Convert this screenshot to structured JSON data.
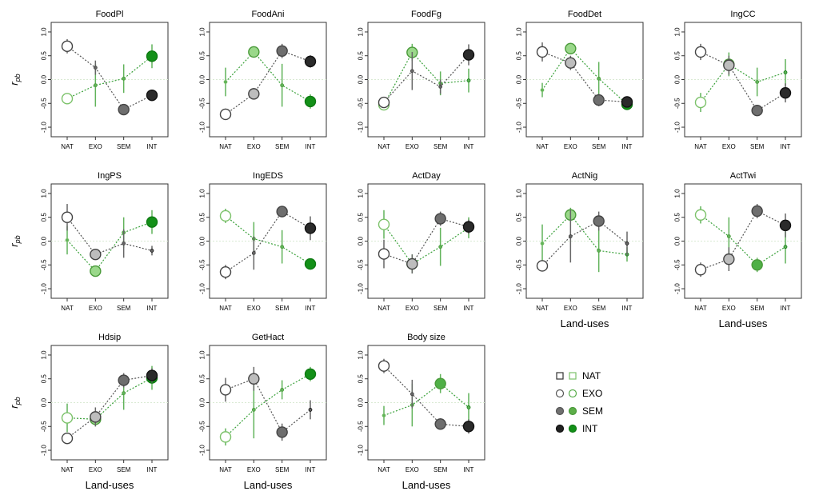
{
  "legend": {
    "items": [
      {
        "label": "NAT",
        "gray_fill": "#ffffff",
        "gray_stroke": "#333333",
        "green_fill": "#ffffff",
        "green_stroke": "#7cc26a"
      },
      {
        "label": "EXO",
        "gray_fill": "#ffffff",
        "gray_stroke": "#555555",
        "green_fill": "#ffffff",
        "green_stroke": "#58ad4a"
      },
      {
        "label": "SEM",
        "gray_fill": "#707070",
        "gray_stroke": "#555555",
        "green_fill": "#5dae49",
        "green_stroke": "#4a9a3a"
      },
      {
        "label": "INT",
        "gray_fill": "#222222",
        "gray_stroke": "#111111",
        "green_fill": "#139018",
        "green_stroke": "#0e7a12"
      }
    ]
  },
  "colors": {
    "gray_point_fills": [
      "#ffffff",
      "#bdbdbd",
      "#6e6e6e",
      "#2b2b2b"
    ],
    "green_point_fills": [
      "#ffffff",
      "#9ad88a",
      "#4fb046",
      "#139018"
    ],
    "gray_line": "#555555",
    "green_line": "#3aa13a",
    "gray_err": "#666666",
    "green_err": "#61b35a",
    "zero_line": "#d9ead3",
    "frame": "#333333"
  },
  "chart_data": [
    {
      "type": "scatter",
      "title": "FoodPl",
      "categories": [
        "NAT",
        "EXO",
        "SEM",
        "INT"
      ],
      "ylim": [
        -1.1,
        1.1
      ],
      "yticks": [
        "-1.0",
        "-0.5",
        "0.0",
        "0.5",
        "1.0"
      ],
      "ylabel": "r_pb",
      "xlabel": "",
      "series": [
        {
          "values": [
            0.7,
            0.25,
            -0.63,
            -0.33
          ],
          "err": [
            0.15,
            0.15,
            0.08,
            0.12
          ],
          "group": "gray"
        },
        {
          "values": [
            -0.4,
            -0.12,
            0.02,
            0.49
          ],
          "err": [
            0.1,
            0.45,
            0.3,
            0.25
          ],
          "group": "green"
        }
      ]
    },
    {
      "type": "scatter",
      "title": "FoodAni",
      "categories": [
        "NAT",
        "EXO",
        "SEM",
        "INT"
      ],
      "ylim": [
        -1.1,
        1.1
      ],
      "yticks": [
        "-1.0",
        "-0.5",
        "0.0",
        "0.5",
        "1.0"
      ],
      "ylabel": "",
      "xlabel": "",
      "series": [
        {
          "values": [
            -0.73,
            -0.3,
            0.6,
            0.38
          ],
          "err": [
            0.12,
            0.12,
            0.15,
            0.13
          ],
          "group": "gray"
        },
        {
          "values": [
            -0.05,
            0.58,
            -0.12,
            -0.46
          ],
          "err": [
            0.3,
            0.12,
            0.45,
            0.15
          ],
          "group": "green"
        }
      ]
    },
    {
      "type": "scatter",
      "title": "FoodFg",
      "categories": [
        "NAT",
        "EXO",
        "SEM",
        "INT"
      ],
      "ylim": [
        -1.1,
        1.1
      ],
      "yticks": [
        "-1.0",
        "-0.5",
        "0.0",
        "0.5",
        "1.0"
      ],
      "ylabel": "",
      "xlabel": "",
      "series": [
        {
          "values": [
            -0.48,
            0.18,
            -0.15,
            0.52
          ],
          "err": [
            0.1,
            0.4,
            0.15,
            0.22
          ],
          "group": "gray"
        },
        {
          "values": [
            -0.53,
            0.57,
            -0.08,
            -0.02
          ],
          "err": [
            0.1,
            0.18,
            0.25,
            0.25
          ],
          "group": "green"
        }
      ]
    },
    {
      "type": "scatter",
      "title": "FoodDet",
      "categories": [
        "NAT",
        "EXO",
        "SEM",
        "INT"
      ],
      "ylim": [
        -1.1,
        1.1
      ],
      "yticks": [
        "-1.0",
        "-0.5",
        "0.0",
        "0.5",
        "1.0"
      ],
      "ylabel": "",
      "xlabel": "",
      "series": [
        {
          "values": [
            0.58,
            0.35,
            -0.43,
            -0.47
          ],
          "err": [
            0.2,
            0.15,
            0.13,
            0.12
          ],
          "group": "gray"
        },
        {
          "values": [
            -0.22,
            0.65,
            0.02,
            -0.52
          ],
          "err": [
            0.15,
            0.12,
            0.35,
            0.12
          ],
          "group": "green"
        }
      ]
    },
    {
      "type": "scatter",
      "title": "IngCC",
      "categories": [
        "NAT",
        "EXO",
        "SEM",
        "INT"
      ],
      "ylim": [
        -1.1,
        1.1
      ],
      "yticks": [
        "-1.0",
        "-0.5",
        "0.0",
        "0.5",
        "1.0"
      ],
      "ylabel": "",
      "xlabel": "",
      "series": [
        {
          "values": [
            0.58,
            0.3,
            -0.65,
            -0.28
          ],
          "err": [
            0.17,
            0.2,
            0.1,
            0.2
          ],
          "group": "gray"
        },
        {
          "values": [
            -0.48,
            0.32,
            -0.05,
            0.15
          ],
          "err": [
            0.2,
            0.25,
            0.3,
            0.28
          ],
          "group": "green"
        }
      ]
    },
    {
      "type": "scatter",
      "title": "IngPS",
      "categories": [
        "NAT",
        "EXO",
        "SEM",
        "INT"
      ],
      "ylim": [
        -1.1,
        1.1
      ],
      "yticks": [
        "-1.0",
        "-0.5",
        "0.0",
        "0.5",
        "1.0"
      ],
      "ylabel": "r_pb",
      "xlabel": "",
      "series": [
        {
          "values": [
            0.5,
            -0.28,
            -0.05,
            -0.2
          ],
          "err": [
            0.28,
            0.08,
            0.3,
            0.1
          ],
          "group": "gray"
        },
        {
          "values": [
            0.02,
            -0.63,
            0.18,
            0.4
          ],
          "err": [
            0.3,
            0.08,
            0.32,
            0.25
          ],
          "group": "green"
        }
      ]
    },
    {
      "type": "scatter",
      "title": "IngEDS",
      "categories": [
        "NAT",
        "EXO",
        "SEM",
        "INT"
      ],
      "ylim": [
        -1.1,
        1.1
      ],
      "yticks": [
        "-1.0",
        "-0.5",
        "0.0",
        "0.5",
        "1.0"
      ],
      "ylabel": "",
      "xlabel": "",
      "series": [
        {
          "values": [
            -0.65,
            -0.25,
            0.62,
            0.27
          ],
          "err": [
            0.15,
            0.35,
            0.12,
            0.25
          ],
          "group": "gray"
        },
        {
          "values": [
            0.53,
            0.05,
            -0.12,
            -0.48
          ],
          "err": [
            0.15,
            0.35,
            0.35,
            0.12
          ],
          "group": "green"
        }
      ]
    },
    {
      "type": "scatter",
      "title": "ActDay",
      "categories": [
        "NAT",
        "EXO",
        "SEM",
        "INT"
      ],
      "ylim": [
        -1.1,
        1.1
      ],
      "yticks": [
        "-1.0",
        "-0.5",
        "0.0",
        "0.5",
        "1.0"
      ],
      "ylabel": "",
      "xlabel": "",
      "series": [
        {
          "values": [
            -0.27,
            -0.48,
            0.47,
            0.3
          ],
          "err": [
            0.3,
            0.2,
            0.15,
            0.15
          ],
          "group": "gray"
        },
        {
          "values": [
            0.35,
            -0.48,
            -0.12,
            0.28
          ],
          "err": [
            0.3,
            0.2,
            0.4,
            0.22
          ],
          "group": "green"
        }
      ]
    },
    {
      "type": "scatter",
      "title": "ActNig",
      "categories": [
        "NAT",
        "EXO",
        "SEM",
        "INT"
      ],
      "ylim": [
        -1.1,
        1.1
      ],
      "yticks": [
        "-1.0",
        "-0.5",
        "0.0",
        "0.5",
        "1.0"
      ],
      "ylabel": "",
      "xlabel": "Land-uses",
      "series": [
        {
          "values": [
            -0.52,
            0.1,
            0.42,
            -0.05
          ],
          "err": [
            0.12,
            0.55,
            0.2,
            0.25
          ],
          "group": "gray"
        },
        {
          "values": [
            -0.05,
            0.55,
            -0.2,
            -0.28
          ],
          "err": [
            0.4,
            0.15,
            0.45,
            0.15
          ],
          "group": "green"
        }
      ]
    },
    {
      "type": "scatter",
      "title": "ActTwi",
      "categories": [
        "NAT",
        "EXO",
        "SEM",
        "INT"
      ],
      "ylim": [
        -1.1,
        1.1
      ],
      "yticks": [
        "-1.0",
        "-0.5",
        "0.0",
        "0.5",
        "1.0"
      ],
      "ylabel": "",
      "xlabel": "Land-uses",
      "series": [
        {
          "values": [
            -0.6,
            -0.38,
            0.63,
            0.33
          ],
          "err": [
            0.15,
            0.25,
            0.15,
            0.25
          ],
          "group": "gray"
        },
        {
          "values": [
            0.55,
            0.1,
            -0.5,
            -0.12
          ],
          "err": [
            0.18,
            0.4,
            0.15,
            0.35
          ],
          "group": "green"
        }
      ]
    },
    {
      "type": "scatter",
      "title": "Hdsip",
      "categories": [
        "NAT",
        "EXO",
        "SEM",
        "INT"
      ],
      "ylim": [
        -1.1,
        1.1
      ],
      "yticks": [
        "-1.0",
        "-0.5",
        "0.0",
        "0.5",
        "1.0"
      ],
      "ylabel": "r_pb",
      "xlabel": "Land-uses",
      "series": [
        {
          "values": [
            -0.75,
            -0.3,
            0.47,
            0.57
          ],
          "err": [
            0.12,
            0.2,
            0.15,
            0.15
          ],
          "group": "gray"
        },
        {
          "values": [
            -0.32,
            -0.35,
            0.2,
            0.52
          ],
          "err": [
            0.3,
            0.15,
            0.35,
            0.25
          ],
          "group": "green"
        }
      ]
    },
    {
      "type": "scatter",
      "title": "GetHact",
      "categories": [
        "NAT",
        "EXO",
        "SEM",
        "INT"
      ],
      "ylim": [
        -1.1,
        1.1
      ],
      "yticks": [
        "-1.0",
        "-0.5",
        "0.0",
        "0.5",
        "1.0"
      ],
      "ylabel": "",
      "xlabel": "Land-uses",
      "series": [
        {
          "values": [
            0.27,
            0.5,
            -0.62,
            -0.15
          ],
          "err": [
            0.25,
            0.25,
            0.18,
            0.2
          ],
          "group": "gray"
        },
        {
          "values": [
            -0.72,
            -0.15,
            0.27,
            0.6
          ],
          "err": [
            0.18,
            0.6,
            0.2,
            0.15
          ],
          "group": "green"
        }
      ]
    },
    {
      "type": "scatter",
      "title": "Body size",
      "categories": [
        "NAT",
        "EXO",
        "SEM",
        "INT"
      ],
      "ylim": [
        -1.1,
        1.1
      ],
      "yticks": [
        "-1.0",
        "-0.5",
        "0.0",
        "0.5",
        "1.0"
      ],
      "ylabel": "",
      "xlabel": "Land-uses",
      "series": [
        {
          "values": [
            0.77,
            0.18,
            -0.45,
            -0.5
          ],
          "err": [
            0.15,
            0.3,
            0.12,
            0.15
          ],
          "group": "gray"
        },
        {
          "values": [
            -0.27,
            -0.05,
            0.4,
            -0.1
          ],
          "err": [
            0.2,
            0.45,
            0.2,
            0.3
          ],
          "group": "green"
        }
      ]
    }
  ]
}
